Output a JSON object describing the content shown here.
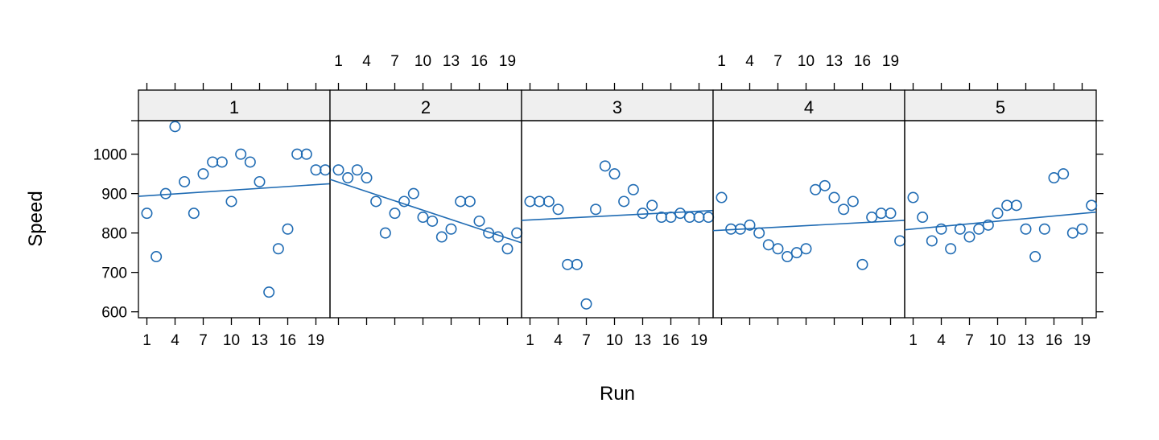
{
  "chart_data": {
    "type": "scatter",
    "xlabel": "Run",
    "ylabel": "Speed",
    "xlim": [
      0.1,
      20.5
    ],
    "ylim": [
      585,
      1085
    ],
    "x_ticks": [
      1,
      4,
      7,
      10,
      13,
      16,
      19
    ],
    "y_ticks": [
      600,
      700,
      800,
      900,
      1000
    ],
    "point_color": "#1f6bb3",
    "strip_color": "#efefef",
    "panels": [
      {
        "label": "1",
        "x": [
          1,
          2,
          3,
          4,
          5,
          6,
          7,
          8,
          9,
          10,
          11,
          12,
          13,
          14,
          15,
          16,
          17,
          18,
          19,
          20
        ],
        "y": [
          850,
          740,
          900,
          1070,
          930,
          850,
          950,
          980,
          980,
          880,
          1000,
          980,
          930,
          650,
          760,
          810,
          1000,
          1000,
          960,
          960
        ],
        "fit": [
          893,
          925
        ]
      },
      {
        "label": "2",
        "x": [
          1,
          2,
          3,
          4,
          5,
          6,
          7,
          8,
          9,
          10,
          11,
          12,
          13,
          14,
          15,
          16,
          17,
          18,
          19,
          20
        ],
        "y": [
          960,
          940,
          960,
          940,
          880,
          800,
          850,
          880,
          900,
          840,
          830,
          790,
          810,
          880,
          880,
          830,
          800,
          790,
          760,
          800
        ],
        "fit": [
          936,
          775
        ]
      },
      {
        "label": "3",
        "x": [
          1,
          2,
          3,
          4,
          5,
          6,
          7,
          8,
          9,
          10,
          11,
          12,
          13,
          14,
          15,
          16,
          17,
          18,
          19,
          20
        ],
        "y": [
          880,
          880,
          880,
          860,
          720,
          720,
          620,
          860,
          970,
          950,
          880,
          910,
          850,
          870,
          840,
          840,
          850,
          840,
          840,
          840
        ],
        "fit": [
          832,
          857
        ]
      },
      {
        "label": "4",
        "x": [
          1,
          2,
          3,
          4,
          5,
          6,
          7,
          8,
          9,
          10,
          11,
          12,
          13,
          14,
          15,
          16,
          17,
          18,
          19,
          20
        ],
        "y": [
          890,
          810,
          810,
          820,
          800,
          770,
          760,
          740,
          750,
          760,
          910,
          920,
          890,
          860,
          880,
          720,
          840,
          850,
          850,
          780
        ],
        "fit": [
          806,
          832
        ]
      },
      {
        "label": "5",
        "x": [
          1,
          2,
          3,
          4,
          5,
          6,
          7,
          8,
          9,
          10,
          11,
          12,
          13,
          14,
          15,
          16,
          17,
          18,
          19,
          20
        ],
        "y": [
          890,
          840,
          780,
          810,
          760,
          810,
          790,
          810,
          820,
          850,
          870,
          870,
          810,
          740,
          810,
          940,
          950,
          800,
          810,
          870
        ],
        "fit": [
          808,
          853
        ]
      }
    ]
  }
}
